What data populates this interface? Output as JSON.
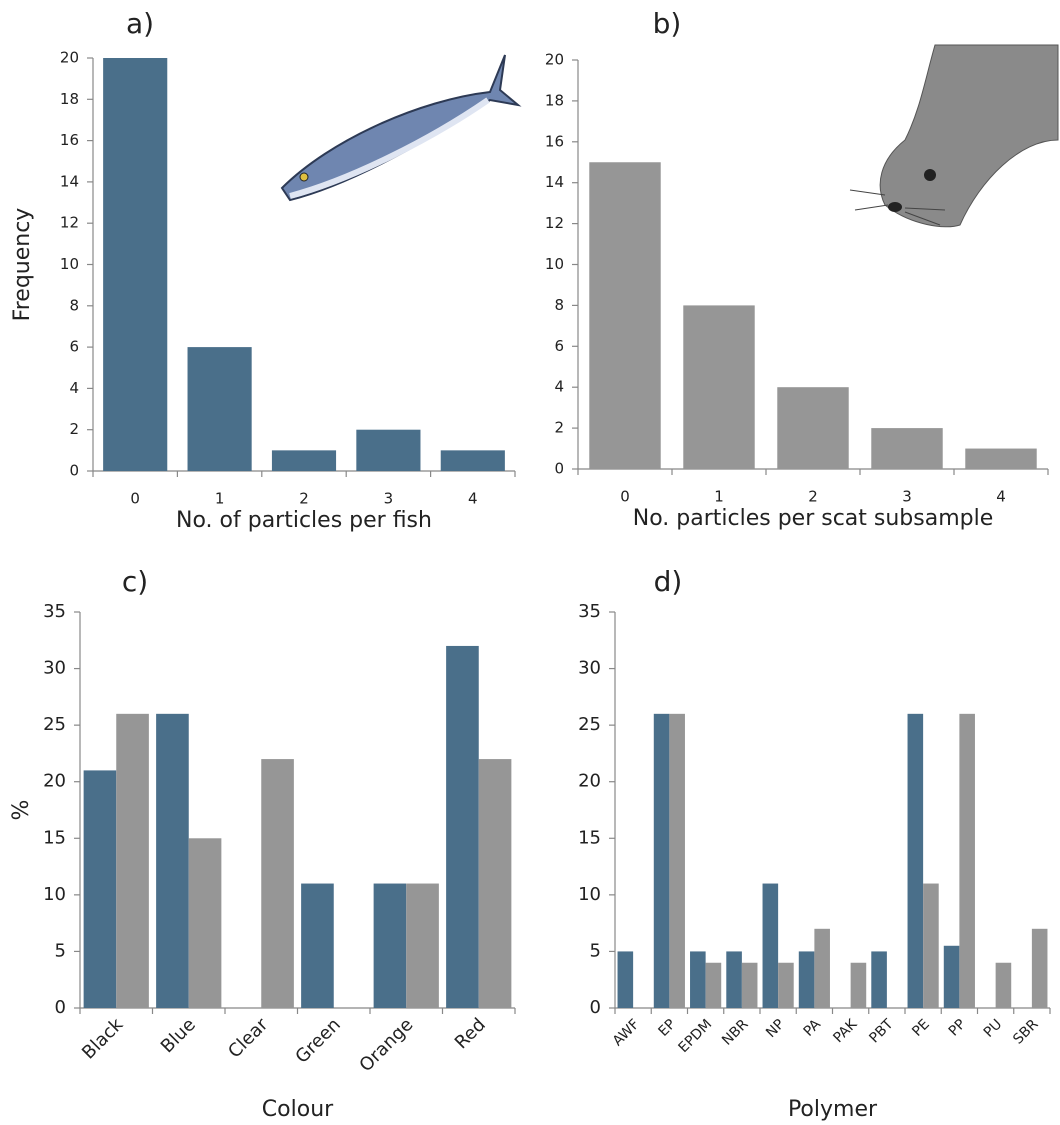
{
  "chart_data": [
    {
      "type": "bar",
      "title": "a)",
      "x_label": "No. of particles per fish",
      "y_label": "Frequency",
      "categories": [
        "0",
        "1",
        "2",
        "3",
        "4"
      ],
      "values": [
        20,
        6,
        1,
        2,
        1
      ],
      "color": "#4a6f8a",
      "ylim": [
        0,
        20
      ],
      "yticks": [
        0,
        2,
        4,
        6,
        8,
        10,
        12,
        14,
        16,
        18,
        20
      ]
    },
    {
      "type": "bar",
      "title": "b)",
      "x_label": "No. particles per scat subsample",
      "categories": [
        "0",
        "1",
        "2",
        "3",
        "4"
      ],
      "values": [
        15,
        8,
        4,
        2,
        1
      ],
      "color": "#969696",
      "ylim": [
        0,
        20
      ],
      "yticks": [
        0,
        2,
        4,
        6,
        8,
        10,
        12,
        14,
        16,
        18,
        20
      ]
    },
    {
      "type": "grouped_bar",
      "title": "c)",
      "x_label": "Colour",
      "y_label": "%",
      "categories": [
        "Black",
        "Blue",
        "Clear",
        "Green",
        "Orange",
        "Red"
      ],
      "series": [
        {
          "color": "#4a6f8a",
          "values": [
            21,
            26,
            0,
            11,
            11,
            32
          ]
        },
        {
          "color": "#969696",
          "values": [
            26,
            15,
            22,
            0,
            11,
            22
          ]
        }
      ],
      "ylim": [
        0,
        35
      ],
      "yticks": [
        0,
        5,
        10,
        15,
        20,
        25,
        30,
        35
      ]
    },
    {
      "type": "grouped_bar",
      "title": "d)",
      "x_label": "Polymer",
      "categories": [
        "AWF",
        "EP",
        "EPDM",
        "NBR",
        "NP",
        "PA",
        "PAK",
        "PBT",
        "PE",
        "PP",
        "PU",
        "SBR"
      ],
      "series": [
        {
          "color": "#4a6f8a",
          "values": [
            5,
            26,
            5,
            5,
            11,
            5,
            0,
            5,
            26,
            5.5,
            0,
            0
          ]
        },
        {
          "color": "#969696",
          "values": [
            0,
            26,
            4,
            4,
            4,
            7,
            4,
            0,
            11,
            26,
            4,
            7
          ]
        }
      ],
      "ylim": [
        0,
        35
      ],
      "yticks": [
        0,
        5,
        10,
        15,
        20,
        25,
        30,
        35
      ]
    }
  ]
}
